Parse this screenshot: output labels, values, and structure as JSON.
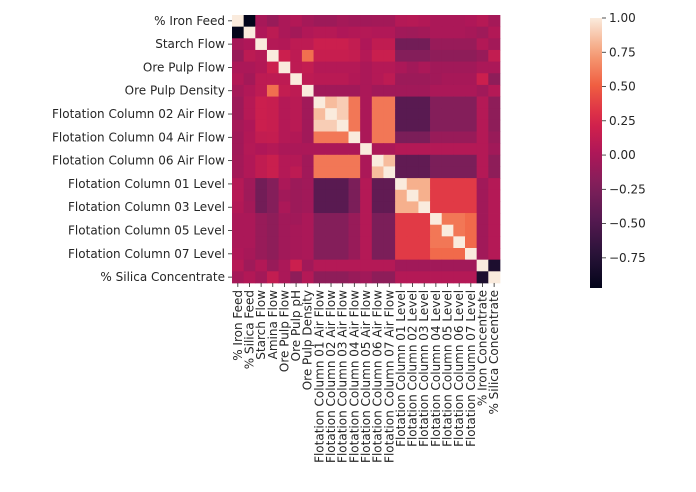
{
  "chart_data": {
    "type": "heatmap",
    "title": "",
    "xlabel": "",
    "ylabel": "",
    "x_labels": [
      "% Iron Feed",
      "% Silica Feed",
      "Starch Flow",
      "Amina Flow",
      "Ore Pulp Flow",
      "Ore Pulp pH",
      "Ore Pulp Density",
      "Flotation Column 01 Air Flow",
      "Flotation Column 02 Air Flow",
      "Flotation Column 03 Air Flow",
      "Flotation Column 04 Air Flow",
      "Flotation Column 05 Air Flow",
      "Flotation Column 06 Air Flow",
      "Flotation Column 07 Air Flow",
      "Flotation Column 01 Level",
      "Flotation Column 02 Level",
      "Flotation Column 03 Level",
      "Flotation Column 04 Level",
      "Flotation Column 05 Level",
      "Flotation Column 06 Level",
      "Flotation Column 07 Level",
      "% Iron Concentrate",
      "% Silica Concentrate"
    ],
    "y_labels": [
      "% Iron Feed",
      "Starch Flow",
      "Ore Pulp Flow",
      "Ore Pulp Density",
      "Flotation Column 02 Air Flow",
      "Flotation Column 04 Air Flow",
      "Flotation Column 06 Air Flow",
      "Flotation Column 01 Level",
      "Flotation Column 03 Level",
      "Flotation Column 05 Level",
      "Flotation Column 07 Level",
      "% Silica Concentrate"
    ],
    "y_label_step": 2,
    "colorbar": {
      "min": -0.97,
      "max": 1.0,
      "ticks": [
        1.0,
        0.75,
        0.5,
        0.25,
        0.0,
        -0.25,
        -0.5,
        -0.75
      ],
      "tick_labels": [
        "1.00",
        "0.75",
        "0.50",
        "0.25",
        "0.00",
        "−0.25",
        "−0.50",
        "−0.75"
      ]
    },
    "colormap": "rocket",
    "matrix": [
      [
        1.0,
        -0.97,
        -0.02,
        -0.1,
        0.0,
        0.04,
        -0.03,
        -0.07,
        -0.07,
        -0.03,
        -0.05,
        -0.05,
        -0.04,
        -0.04,
        0.05,
        0.06,
        0.04,
        0.0,
        0.0,
        0.0,
        0.02,
        0.06,
        -0.03
      ],
      [
        -0.97,
        1.0,
        0.02,
        0.09,
        0.0,
        -0.04,
        0.03,
        0.06,
        0.06,
        0.02,
        0.04,
        0.05,
        0.03,
        0.03,
        -0.05,
        -0.06,
        -0.04,
        0.0,
        0.0,
        0.0,
        -0.02,
        -0.06,
        0.04
      ],
      [
        -0.02,
        0.02,
        1.0,
        0.05,
        0.04,
        0.1,
        0.1,
        0.18,
        0.18,
        0.18,
        0.13,
        0.02,
        0.12,
        0.12,
        -0.3,
        -0.3,
        -0.3,
        -0.1,
        -0.1,
        -0.1,
        -0.1,
        0.04,
        -0.04
      ],
      [
        -0.1,
        0.09,
        0.05,
        1.0,
        0.18,
        0.1,
        0.57,
        0.16,
        0.16,
        0.16,
        0.14,
        0.05,
        0.17,
        0.17,
        -0.2,
        -0.2,
        -0.2,
        -0.15,
        -0.15,
        -0.15,
        -0.15,
        -0.1,
        0.13
      ],
      [
        0.0,
        0.0,
        0.04,
        0.18,
        1.0,
        0.1,
        0.13,
        0.05,
        0.05,
        0.05,
        0.05,
        0.0,
        0.05,
        0.05,
        0.0,
        -0.05,
        0.0,
        -0.05,
        -0.05,
        -0.05,
        -0.05,
        0.0,
        0.0
      ],
      [
        0.04,
        -0.04,
        0.1,
        0.1,
        0.1,
        1.0,
        0.1,
        0.08,
        0.08,
        0.08,
        0.04,
        0.0,
        0.05,
        0.1,
        -0.08,
        -0.08,
        -0.08,
        -0.05,
        -0.02,
        -0.02,
        -0.02,
        0.18,
        -0.15
      ],
      [
        -0.03,
        0.03,
        0.1,
        0.57,
        0.13,
        0.1,
        1.0,
        -0.05,
        -0.05,
        -0.05,
        -0.05,
        0.0,
        -0.05,
        -0.05,
        -0.05,
        -0.05,
        -0.05,
        0.0,
        0.0,
        0.0,
        0.0,
        -0.05,
        0.05
      ],
      [
        -0.07,
        0.06,
        0.18,
        0.16,
        0.05,
        0.08,
        -0.05,
        1.0,
        0.84,
        0.9,
        0.6,
        0.0,
        0.6,
        0.6,
        -0.45,
        -0.45,
        -0.45,
        -0.2,
        -0.2,
        -0.2,
        -0.2,
        0.05,
        -0.15
      ],
      [
        -0.07,
        0.06,
        0.18,
        0.16,
        0.05,
        0.08,
        -0.05,
        0.84,
        1.0,
        0.9,
        0.6,
        0.0,
        0.6,
        0.6,
        -0.45,
        -0.45,
        -0.45,
        -0.2,
        -0.2,
        -0.2,
        -0.2,
        0.05,
        -0.15
      ],
      [
        -0.03,
        0.02,
        0.18,
        0.16,
        0.05,
        0.08,
        -0.05,
        0.9,
        0.9,
        1.0,
        0.6,
        0.0,
        0.6,
        0.6,
        -0.45,
        -0.45,
        -0.45,
        -0.2,
        -0.2,
        -0.2,
        -0.2,
        0.05,
        -0.15
      ],
      [
        -0.05,
        0.04,
        0.13,
        0.14,
        0.05,
        0.04,
        -0.05,
        0.6,
        0.6,
        0.6,
        1.0,
        0.0,
        0.6,
        0.6,
        -0.25,
        -0.25,
        -0.25,
        -0.1,
        -0.1,
        -0.1,
        -0.1,
        0.05,
        -0.1
      ],
      [
        -0.05,
        0.05,
        0.02,
        0.05,
        0.0,
        0.0,
        0.0,
        0.0,
        0.0,
        0.0,
        0.0,
        1.0,
        0.0,
        0.0,
        0.05,
        0.05,
        0.05,
        0.05,
        0.05,
        0.05,
        0.05,
        0.05,
        -0.05
      ],
      [
        -0.04,
        0.03,
        0.12,
        0.17,
        0.05,
        0.05,
        -0.05,
        0.6,
        0.6,
        0.6,
        0.6,
        0.0,
        1.0,
        0.84,
        -0.4,
        -0.4,
        -0.4,
        -0.25,
        -0.25,
        -0.25,
        -0.25,
        0.05,
        -0.15
      ],
      [
        -0.04,
        0.03,
        0.12,
        0.17,
        0.05,
        0.1,
        -0.05,
        0.6,
        0.6,
        0.6,
        0.6,
        0.0,
        0.84,
        1.0,
        -0.4,
        -0.4,
        -0.4,
        -0.25,
        -0.25,
        -0.25,
        -0.25,
        0.05,
        -0.15
      ],
      [
        0.05,
        -0.05,
        -0.3,
        -0.2,
        0.0,
        -0.08,
        -0.05,
        -0.45,
        -0.45,
        -0.45,
        -0.25,
        0.05,
        -0.4,
        -0.4,
        1.0,
        0.8,
        0.8,
        0.35,
        0.35,
        0.35,
        0.35,
        -0.05,
        0.05
      ],
      [
        0.06,
        -0.06,
        -0.3,
        -0.2,
        -0.05,
        -0.08,
        -0.05,
        -0.45,
        -0.45,
        -0.45,
        -0.25,
        0.05,
        -0.4,
        -0.4,
        0.8,
        1.0,
        0.8,
        0.35,
        0.35,
        0.35,
        0.35,
        -0.05,
        0.05
      ],
      [
        0.04,
        -0.04,
        -0.3,
        -0.2,
        0.0,
        -0.08,
        -0.05,
        -0.45,
        -0.45,
        -0.45,
        -0.25,
        0.05,
        -0.4,
        -0.4,
        0.8,
        0.8,
        1.0,
        0.35,
        0.35,
        0.35,
        0.35,
        -0.05,
        0.05
      ],
      [
        0.0,
        0.0,
        -0.1,
        -0.15,
        -0.05,
        -0.05,
        0.0,
        -0.2,
        -0.2,
        -0.2,
        -0.1,
        0.05,
        -0.25,
        -0.25,
        0.35,
        0.35,
        0.35,
        1.0,
        0.6,
        0.6,
        0.55,
        -0.05,
        0.05
      ],
      [
        0.0,
        0.0,
        -0.1,
        -0.15,
        -0.05,
        -0.02,
        0.0,
        -0.2,
        -0.2,
        -0.2,
        -0.1,
        0.05,
        -0.25,
        -0.25,
        0.35,
        0.35,
        0.35,
        0.6,
        1.0,
        0.6,
        0.55,
        -0.05,
        0.05
      ],
      [
        0.0,
        0.0,
        -0.1,
        -0.15,
        -0.05,
        -0.02,
        0.0,
        -0.2,
        -0.2,
        -0.2,
        -0.1,
        0.05,
        -0.25,
        -0.25,
        0.35,
        0.35,
        0.35,
        0.6,
        0.6,
        1.0,
        0.55,
        -0.05,
        0.05
      ],
      [
        0.02,
        -0.02,
        -0.1,
        -0.15,
        -0.05,
        -0.02,
        0.0,
        -0.2,
        -0.2,
        -0.2,
        -0.1,
        0.05,
        -0.25,
        -0.25,
        0.35,
        0.35,
        0.35,
        0.55,
        0.55,
        0.55,
        1.0,
        -0.05,
        0.05
      ],
      [
        0.06,
        -0.06,
        0.04,
        -0.1,
        0.0,
        0.18,
        -0.05,
        0.05,
        0.05,
        0.05,
        0.05,
        0.05,
        0.05,
        0.05,
        -0.05,
        -0.05,
        -0.05,
        -0.05,
        -0.05,
        -0.05,
        -0.05,
        1.0,
        -0.8
      ],
      [
        -0.03,
        0.04,
        -0.04,
        0.13,
        0.0,
        -0.15,
        0.05,
        -0.15,
        -0.15,
        -0.15,
        -0.1,
        -0.05,
        -0.15,
        -0.15,
        0.05,
        0.05,
        0.05,
        0.05,
        0.05,
        0.05,
        0.05,
        -0.8,
        1.0
      ]
    ]
  }
}
